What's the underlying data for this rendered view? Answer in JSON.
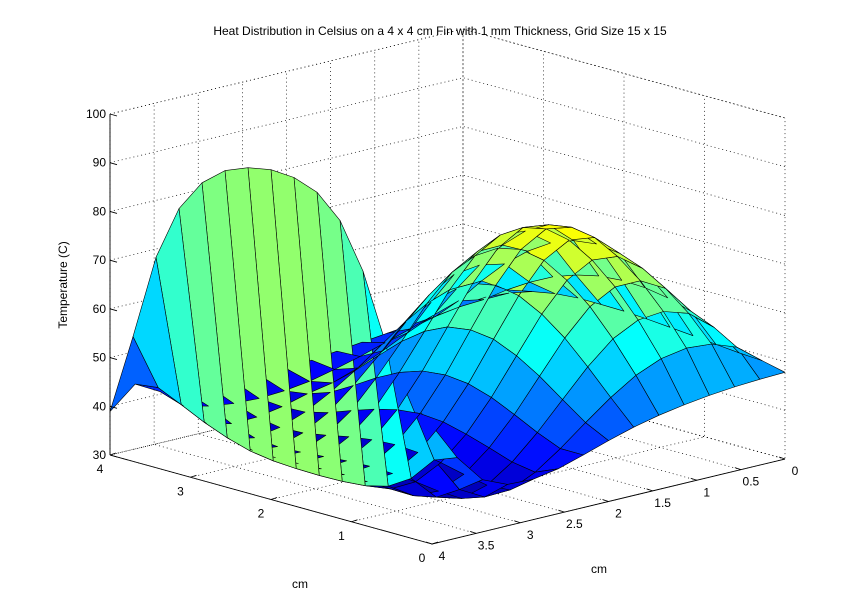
{
  "chart_data": {
    "type": "surface",
    "title": "Heat Distribution in Celsius on a 4 x 4 cm Fin with 1 mm Thickness, Grid Size 15 x 15",
    "xlabel": "cm",
    "ylabel": "cm",
    "zlabel": "Temperature (C)",
    "xlim": [
      0,
      4
    ],
    "ylim": [
      0,
      4
    ],
    "zlim": [
      30,
      100
    ],
    "xticks": [
      "0",
      "0.5",
      "1",
      "1.5",
      "2",
      "2.5",
      "3",
      "3.5",
      "4"
    ],
    "yticks": [
      "0",
      "1",
      "2",
      "3",
      "4"
    ],
    "zticks": [
      "30",
      "40",
      "50",
      "60",
      "70",
      "80",
      "90",
      "100"
    ],
    "grid": true,
    "colormap": "jet",
    "grid_size": [
      15,
      15
    ],
    "x": [
      0,
      0.2857,
      0.5714,
      0.8571,
      1.1429,
      1.4286,
      1.7143,
      2.0,
      2.2857,
      2.5714,
      2.8571,
      3.1429,
      3.4286,
      3.7143,
      4.0
    ],
    "y": [
      0,
      0.2857,
      0.5714,
      0.8571,
      1.1429,
      1.4286,
      1.7143,
      2.0,
      2.2857,
      2.5714,
      2.8571,
      3.1429,
      3.4286,
      3.7143,
      4.0
    ],
    "z": [
      [
        47.8,
        48.9,
        49.2,
        49.6,
        50.1,
        50.5,
        50.9,
        51.2,
        51.3,
        51.3,
        50.9,
        50.0,
        48.4,
        46.3,
        43.4
      ],
      [
        47.6,
        52.9,
        55.7,
        57.7,
        59.1,
        59.9,
        60.1,
        59.7,
        58.6,
        56.9,
        54.5,
        51.6,
        48.3,
        45.6,
        42.5
      ],
      [
        47.3,
        54.8,
        59.8,
        63.6,
        66.4,
        68.2,
        68.8,
        68.2,
        66.4,
        63.4,
        59.5,
        54.7,
        49.3,
        44.8,
        41.9
      ],
      [
        46.8,
        55.2,
        61.4,
        66.4,
        70.1,
        72.7,
        73.5,
        72.7,
        70.1,
        65.9,
        60.5,
        54.3,
        47.6,
        43.5,
        41.3
      ],
      [
        46.1,
        54.3,
        60.9,
        66.4,
        70.6,
        73.4,
        74.4,
        73.4,
        70.5,
        65.8,
        59.8,
        52.8,
        45.3,
        41.9,
        40.7
      ],
      [
        45.2,
        52.1,
        58.3,
        63.6,
        67.7,
        70.5,
        71.4,
        70.4,
        67.5,
        62.8,
        56.8,
        50.0,
        42.8,
        40.3,
        40.1
      ],
      [
        44.0,
        48.8,
        53.8,
        58.4,
        62.0,
        64.5,
        65.3,
        64.4,
        61.8,
        57.6,
        52.3,
        46.4,
        40.5,
        38.9,
        39.5
      ],
      [
        42.5,
        44.9,
        48.3,
        51.8,
        54.7,
        56.8,
        57.4,
        56.7,
        54.5,
        51.1,
        46.9,
        42.6,
        38.7,
        37.7,
        39.0
      ],
      [
        40.8,
        40.8,
        42.8,
        45.2,
        47.4,
        48.9,
        49.4,
        48.9,
        47.3,
        44.9,
        42.0,
        39.3,
        37.7,
        37.0,
        38.7
      ],
      [
        39.2,
        37.2,
        38.0,
        39.6,
        41.1,
        42.3,
        42.7,
        42.2,
        41.0,
        39.4,
        37.7,
        36.5,
        36.3,
        36.7,
        38.6
      ],
      [
        38.3,
        34.8,
        34.5,
        35.4,
        36.5,
        37.3,
        37.6,
        37.3,
        36.6,
        35.6,
        34.8,
        34.6,
        35.4,
        36.9,
        38.8
      ],
      [
        38.5,
        34.6,
        33.0,
        33.2,
        33.8,
        34.2,
        34.4,
        34.2,
        33.8,
        33.4,
        33.2,
        33.7,
        35.3,
        37.6,
        39.3
      ],
      [
        40.7,
        37.4,
        34.5,
        33.5,
        33.6,
        33.8,
        33.9,
        33.8,
        33.6,
        33.5,
        33.7,
        34.7,
        36.6,
        38.9,
        40.5
      ],
      [
        46.5,
        44.7,
        39.6,
        36.7,
        35.5,
        35.1,
        35.0,
        35.1,
        35.4,
        36.1,
        37.5,
        39.4,
        41.7,
        43.9,
        43.3
      ],
      [
        54.3,
        58.5,
        68.4,
        82.1,
        91.2,
        95.7,
        97.4,
        97.7,
        96.8,
        94.9,
        91.1,
        84.5,
        73.2,
        55.6,
        38.9
      ]
    ]
  }
}
